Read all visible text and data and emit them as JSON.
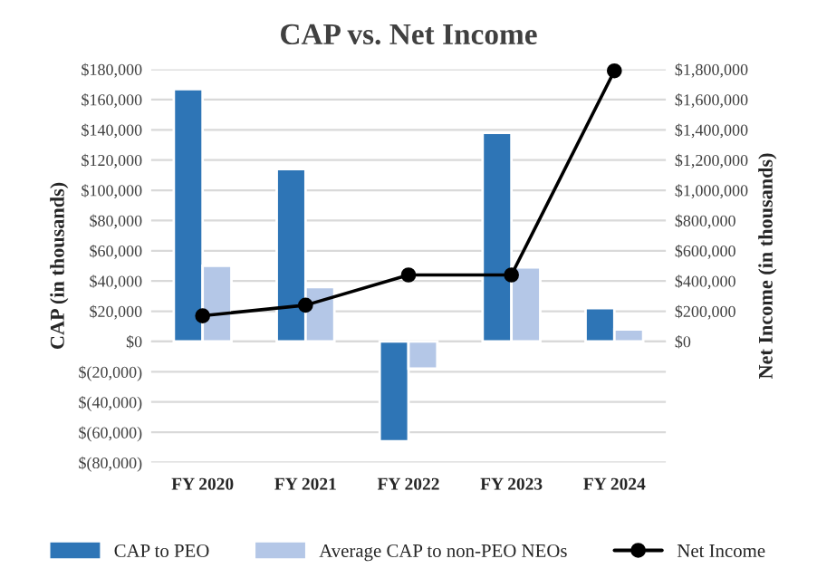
{
  "chart_data": {
    "type": "bar",
    "title": "CAP vs. Net Income",
    "ylabel": "CAP (in thousands)",
    "y2label": "Net Income (in thousands)",
    "categories": [
      "FY 2020",
      "FY 2021",
      "FY 2022",
      "FY 2023",
      "FY 2024"
    ],
    "series": [
      {
        "name": "CAP to PEO",
        "color": "#2e75b6",
        "values": [
          167000,
          114000,
          -66000,
          138000,
          22000
        ]
      },
      {
        "name": "Average CAP to non-PEO NEOs",
        "color": "#b4c7e7",
        "values": [
          50000,
          36000,
          -18000,
          49000,
          8000
        ]
      },
      {
        "name": "Net Income",
        "type": "line",
        "axis": "y2",
        "color": "#000000",
        "marker": "circle",
        "values": [
          170000,
          240000,
          440000,
          440000,
          1790000
        ]
      }
    ],
    "ylim": [
      -80000,
      180000
    ],
    "yticks": [
      {
        "value": -80000,
        "label": "$(80,000)"
      },
      {
        "value": -60000,
        "label": "$(60,000)"
      },
      {
        "value": -40000,
        "label": "$(40,000)"
      },
      {
        "value": -20000,
        "label": "$(20,000)"
      },
      {
        "value": 0,
        "label": "$0"
      },
      {
        "value": 20000,
        "label": "$20,000"
      },
      {
        "value": 40000,
        "label": "$40,000"
      },
      {
        "value": 60000,
        "label": "$60,000"
      },
      {
        "value": 80000,
        "label": "$80,000"
      },
      {
        "value": 100000,
        "label": "$100,000"
      },
      {
        "value": 120000,
        "label": "$120,000"
      },
      {
        "value": 140000,
        "label": "$140,000"
      },
      {
        "value": 160000,
        "label": "$160,000"
      },
      {
        "value": 180000,
        "label": "$180,000"
      }
    ],
    "y2lim": [
      -800000,
      1800000
    ],
    "y2ticks": [
      {
        "value": 0,
        "label": "$0"
      },
      {
        "value": 200000,
        "label": "$200,000"
      },
      {
        "value": 400000,
        "label": "$400,000"
      },
      {
        "value": 600000,
        "label": "$600,000"
      },
      {
        "value": 800000,
        "label": "$800,000"
      },
      {
        "value": 1000000,
        "label": "$1,000,000"
      },
      {
        "value": 1200000,
        "label": "$1,200,000"
      },
      {
        "value": 1400000,
        "label": "$1,400,000"
      },
      {
        "value": 1600000,
        "label": "$1,600,000"
      },
      {
        "value": 1800000,
        "label": "$1,800,000"
      }
    ],
    "grid": "y",
    "legend": "bottom"
  }
}
